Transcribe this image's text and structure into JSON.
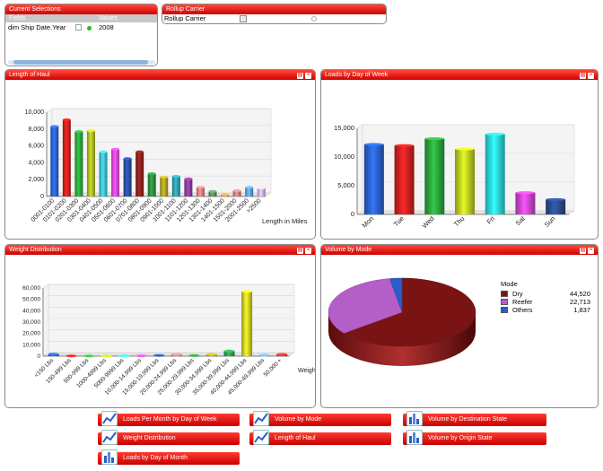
{
  "current_selections": {
    "title": "Current Selections",
    "col_fields": "Fields",
    "col_values": "Values",
    "row_field": "dim Ship Date.Year",
    "row_value": "2008"
  },
  "rollup": {
    "title": "Rollup Carrier",
    "value": "Rollup Carrier"
  },
  "charts": [
    {
      "title": "Length of Haul",
      "type": "bar",
      "categories": [
        "0001-0100",
        "0101-0200",
        "0201-0300",
        "0301-0400",
        "0401-0500",
        "0501-0600",
        "0601-0700",
        "0701-0800",
        "0801-0900",
        "0901-1000",
        "1001-1100",
        "1101-1200",
        "1201-1300",
        "1301-1400",
        "1401-1500",
        "1501-2000",
        "2001-2500",
        ">2500"
      ],
      "values": [
        8300,
        9100,
        7700,
        7800,
        5300,
        5600,
        4500,
        5300,
        2700,
        2300,
        2400,
        2100,
        1100,
        600,
        200,
        700,
        1100,
        1000
      ],
      "colors": [
        "#2a5ec8",
        "#c8201e",
        "#2aa03a",
        "#a8b51e",
        "#3cb8c8",
        "#e044e0",
        "#2a4aa0",
        "#8a1e1e",
        "#2a8a3a",
        "#a89a1e",
        "#2a9aa8",
        "#8a3a9a",
        "#d87a7a",
        "#5a8a5a",
        "#c88a2a",
        "#c87a7a",
        "#5a9ad8",
        "#c8a8e0"
      ],
      "xlabel": "Length in Miles",
      "ylim": [
        0,
        10000
      ],
      "yticks": [
        "0",
        "2,000",
        "4,000",
        "6,000",
        "8,000",
        "10,000"
      ]
    },
    {
      "title": "Loads by Day of Week",
      "type": "bar",
      "categories": [
        "Mon",
        "Tue",
        "Wed",
        "Thu",
        "Fri",
        "Sat",
        "Sun"
      ],
      "values": [
        12200,
        12000,
        13200,
        11400,
        14000,
        3800,
        2600
      ],
      "colors": [
        "#2a5ec8",
        "#c8201e",
        "#2aa03a",
        "#b8c81e",
        "#2ad0d8",
        "#c844c8",
        "#2a4a8a"
      ],
      "ylim": [
        0,
        15000
      ],
      "yticks": [
        "0",
        "5,000",
        "10,000",
        "15,000"
      ]
    },
    {
      "title": "Weight Distribution",
      "type": "bar",
      "categories": [
        "<150 Lbs",
        "150-499 Lbs",
        "500-999 Lbs",
        "1000-4999 Lbs",
        "5000-9999 Lbs",
        "10,000-14,999 Lbs",
        "15,000-19,999 Lbs",
        "20,000-24,999 Lbs",
        "25,000-29,999 Lbs",
        "30,000-34,999 Lbs",
        "35,000-39,999 Lbs",
        "40,000-44,999 Lbs",
        "45,000-49,999 Lbs",
        "50,000 +"
      ],
      "values": [
        1800,
        200,
        100,
        100,
        200,
        300,
        600,
        1600,
        500,
        1500,
        4500,
        57000,
        800,
        1600
      ],
      "colors": [
        "#2a5ec8",
        "#c8201e",
        "#2aa03a",
        "#a8b51e",
        "#3cb8c8",
        "#e044e0",
        "#2a4aa0",
        "#c87a7a",
        "#2a8a3a",
        "#a89a1e",
        "#2a9a4a",
        "#c8c81e",
        "#5a9ad8",
        "#c83030"
      ],
      "xlabel": "Weight",
      "ylim": [
        0,
        60000
      ],
      "yticks": [
        "0",
        "10,000",
        "20,000",
        "30,000",
        "40,000",
        "50,000",
        "60,000"
      ]
    }
  ],
  "volume_by_mode": {
    "title": "Volume by Mode",
    "legend_title": "Mode",
    "items": [
      {
        "label": "Dry",
        "value": "44,520",
        "num": 44520,
        "color": "#7a1414"
      },
      {
        "label": "Reefer",
        "value": "22,713",
        "num": 22713,
        "color": "#b45ec8"
      },
      {
        "label": "Others",
        "value": "1,837",
        "num": 1837,
        "color": "#2a5ec8"
      }
    ]
  },
  "chart_data": [
    {
      "type": "bar",
      "title": "Length of Haul",
      "xlabel": "Length in Miles",
      "ylim": [
        0,
        10000
      ],
      "categories": [
        "0001-0100",
        "0101-0200",
        "0201-0300",
        "0301-0400",
        "0401-0500",
        "0501-0600",
        "0601-0700",
        "0701-0800",
        "0801-0900",
        "0901-1000",
        "1001-1100",
        "1101-1200",
        "1201-1300",
        "1301-1400",
        "1401-1500",
        "1501-2000",
        "2001-2500",
        ">2500"
      ],
      "values": [
        8300,
        9100,
        7700,
        7800,
        5300,
        5600,
        4500,
        5300,
        2700,
        2300,
        2400,
        2100,
        1100,
        600,
        200,
        700,
        1100,
        1000
      ]
    },
    {
      "type": "bar",
      "title": "Loads by Day of Week",
      "ylim": [
        0,
        15000
      ],
      "categories": [
        "Mon",
        "Tue",
        "Wed",
        "Thu",
        "Fri",
        "Sat",
        "Sun"
      ],
      "values": [
        12200,
        12000,
        13200,
        11400,
        14000,
        3800,
        2600
      ]
    },
    {
      "type": "bar",
      "title": "Weight Distribution",
      "xlabel": "Weight",
      "ylim": [
        0,
        60000
      ],
      "categories": [
        "<150 Lbs",
        "150-499 Lbs",
        "500-999 Lbs",
        "1000-4999 Lbs",
        "5000-9999 Lbs",
        "10,000-14,999 Lbs",
        "15,000-19,999 Lbs",
        "20,000-24,999 Lbs",
        "25,000-29,999 Lbs",
        "30,000-34,999 Lbs",
        "35,000-39,999 Lbs",
        "40,000-44,999 Lbs",
        "45,000-49,999 Lbs",
        "50,000 +"
      ],
      "values": [
        1800,
        200,
        100,
        100,
        200,
        300,
        600,
        1600,
        500,
        1500,
        4500,
        57000,
        800,
        1600
      ]
    },
    {
      "type": "pie",
      "title": "Volume by Mode",
      "categories": [
        "Dry",
        "Reefer",
        "Others"
      ],
      "values": [
        44520,
        22713,
        1837
      ]
    }
  ],
  "buttons": [
    {
      "label": "Loads Per Month by Day of Week",
      "icon": "line-chart-icon"
    },
    {
      "label": "Volume by Mode",
      "icon": "line-chart-icon"
    },
    {
      "label": "Volume by Destination State",
      "icon": "bar-chart-icon"
    },
    {
      "label": "Weight Distribution",
      "icon": "line-chart-icon"
    },
    {
      "label": "Length of Haul",
      "icon": "line-chart-icon"
    },
    {
      "label": "Volume by Origin State",
      "icon": "bar-chart-icon"
    },
    {
      "label": "Loads by Day of Month",
      "icon": "bar-chart-icon"
    }
  ]
}
